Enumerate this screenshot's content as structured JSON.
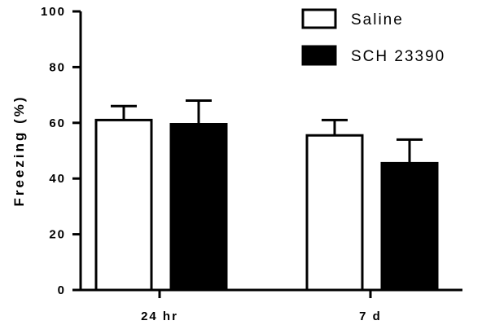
{
  "chart_data": {
    "type": "bar",
    "categories": [
      "24 hr",
      "7 d"
    ],
    "ylabel": "Freezing (%)",
    "xlabel": "",
    "ylim": [
      0,
      100
    ],
    "yticks": [
      "0",
      "20",
      "40",
      "60",
      "80",
      "100"
    ],
    "legend_position": "top-right",
    "grid": false,
    "series": [
      {
        "name": "Saline",
        "values": [
          61,
          55.5
        ],
        "error": [
          5,
          5.5
        ],
        "fill": "#ffffff",
        "stroke": "#000000"
      },
      {
        "name": "SCH 23390",
        "values": [
          59.5,
          45.5
        ],
        "error": [
          8.5,
          8.5
        ],
        "fill": "#000000",
        "stroke": "#000000"
      }
    ]
  }
}
